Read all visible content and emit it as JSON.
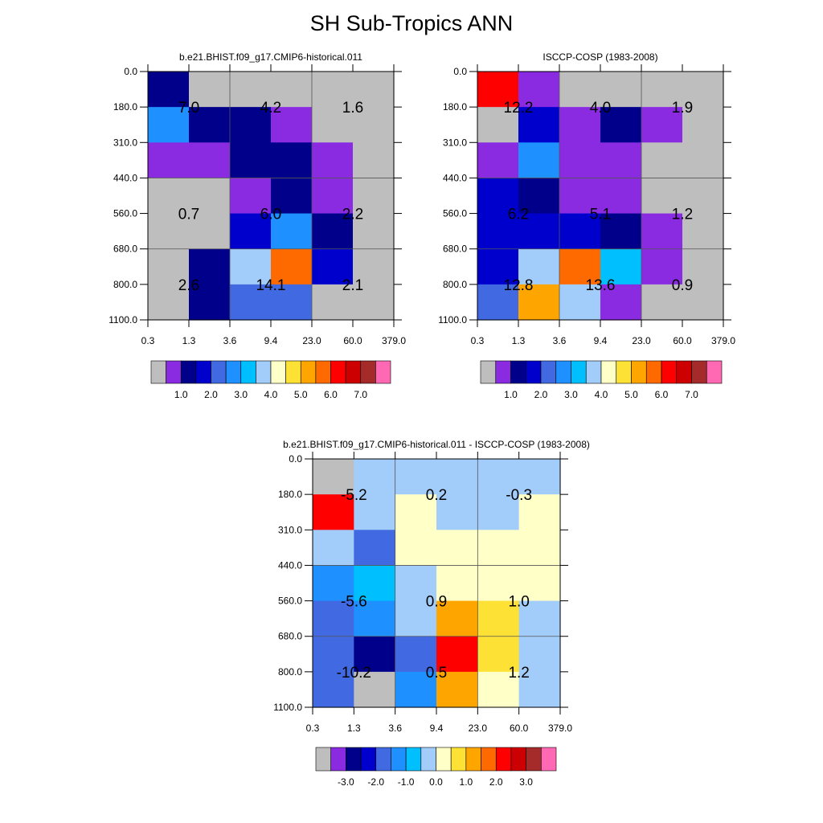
{
  "page": {
    "title": "SH Sub-Tropics ANN"
  },
  "palette": {
    "gray": "#bebebe",
    "violet": "#8a2be2",
    "navy": "#00008b",
    "blue": "#0000cd",
    "royal": "#4169e1",
    "dodger": "#1e90ff",
    "deepsky": "#00bfff",
    "lightblue": "#a2cdfa",
    "cream": "#ffffc8",
    "gold": "#fde135",
    "orange": "#ffa500",
    "darkorange": "#ff6a00",
    "red": "#ff0000",
    "darkred": "#cc0000",
    "brown": "#a52a2a",
    "pink": "#ff69b4"
  },
  "chart_data": [
    {
      "type": "heatmap",
      "title": "b.e21.BHIST.f09_g17.CMIP6-historical.011",
      "x_ticks": [
        "0.3",
        "1.3",
        "3.6",
        "9.4",
        "23.0",
        "60.0",
        "379.0"
      ],
      "y_ticks": [
        "0.0",
        "180.0",
        "310.0",
        "440.0",
        "560.0",
        "680.0",
        "800.0",
        "1100.0"
      ],
      "cell_colors": [
        [
          "navy",
          "gray",
          "gray",
          "gray",
          "gray",
          "gray"
        ],
        [
          "dodger",
          "navy",
          "navy",
          "violet",
          "gray",
          "gray"
        ],
        [
          "violet",
          "violet",
          "navy",
          "navy",
          "violet",
          "gray"
        ],
        [
          "gray",
          "gray",
          "violet",
          "navy",
          "violet",
          "gray"
        ],
        [
          "gray",
          "gray",
          "blue",
          "dodger",
          "navy",
          "gray"
        ],
        [
          "gray",
          "navy",
          "lightblue",
          "darkorange",
          "blue",
          "gray"
        ],
        [
          "gray",
          "navy",
          "royal",
          "royal",
          "gray",
          "gray"
        ]
      ],
      "annotations": [
        {
          "text": "7.0",
          "x": "1.3",
          "y": "180.0"
        },
        {
          "text": "4.2",
          "x": "9.4",
          "y": "180.0"
        },
        {
          "text": "1.6",
          "x": "60.0",
          "y": "180.0"
        },
        {
          "text": "0.7",
          "x": "1.3",
          "y": "560.0"
        },
        {
          "text": "6.0",
          "x": "9.4",
          "y": "560.0"
        },
        {
          "text": "2.2",
          "x": "60.0",
          "y": "560.0"
        },
        {
          "text": "2.6",
          "x": "1.3",
          "y": "800.0"
        },
        {
          "text": "14.1",
          "x": "9.4",
          "y": "800.0"
        },
        {
          "text": "2.1",
          "x": "60.0",
          "y": "800.0"
        }
      ],
      "colorbar": {
        "colors": [
          "gray",
          "violet",
          "navy",
          "blue",
          "royal",
          "dodger",
          "deepsky",
          "lightblue",
          "cream",
          "gold",
          "orange",
          "darkorange",
          "red",
          "darkred",
          "brown",
          "pink"
        ],
        "labels": [
          "1.0",
          "2.0",
          "3.0",
          "4.0",
          "5.0",
          "6.0",
          "7.0"
        ],
        "first_label_boundary": 2
      }
    },
    {
      "type": "heatmap",
      "title": "ISCCP-COSP (1983-2008)",
      "x_ticks": [
        "0.3",
        "1.3",
        "3.6",
        "9.4",
        "23.0",
        "60.0",
        "379.0"
      ],
      "y_ticks": [
        "0.0",
        "180.0",
        "310.0",
        "440.0",
        "560.0",
        "680.0",
        "800.0",
        "1100.0"
      ],
      "cell_colors": [
        [
          "red",
          "violet",
          "gray",
          "gray",
          "gray",
          "gray"
        ],
        [
          "gray",
          "blue",
          "violet",
          "navy",
          "violet",
          "gray"
        ],
        [
          "violet",
          "dodger",
          "violet",
          "violet",
          "gray",
          "gray"
        ],
        [
          "blue",
          "navy",
          "violet",
          "violet",
          "gray",
          "gray"
        ],
        [
          "blue",
          "blue",
          "blue",
          "navy",
          "violet",
          "gray"
        ],
        [
          "blue",
          "lightblue",
          "darkorange",
          "deepsky",
          "violet",
          "gray"
        ],
        [
          "royal",
          "orange",
          "lightblue",
          "violet",
          "gray",
          "gray"
        ]
      ],
      "annotations": [
        {
          "text": "12.2",
          "x": "1.3",
          "y": "180.0"
        },
        {
          "text": "4.0",
          "x": "9.4",
          "y": "180.0"
        },
        {
          "text": "1.9",
          "x": "60.0",
          "y": "180.0"
        },
        {
          "text": "6.2",
          "x": "1.3",
          "y": "560.0"
        },
        {
          "text": "5.1",
          "x": "9.4",
          "y": "560.0"
        },
        {
          "text": "1.2",
          "x": "60.0",
          "y": "560.0"
        },
        {
          "text": "12.8",
          "x": "1.3",
          "y": "800.0"
        },
        {
          "text": "13.6",
          "x": "9.4",
          "y": "800.0"
        },
        {
          "text": "0.9",
          "x": "60.0",
          "y": "800.0"
        }
      ],
      "colorbar": {
        "colors": [
          "gray",
          "violet",
          "navy",
          "blue",
          "royal",
          "dodger",
          "deepsky",
          "lightblue",
          "cream",
          "gold",
          "orange",
          "darkorange",
          "red",
          "darkred",
          "brown",
          "pink"
        ],
        "labels": [
          "1.0",
          "2.0",
          "3.0",
          "4.0",
          "5.0",
          "6.0",
          "7.0"
        ],
        "first_label_boundary": 2
      }
    },
    {
      "type": "heatmap",
      "title": "b.e21.BHIST.f09_g17.CMIP6-historical.011 - ISCCP-COSP (1983-2008)",
      "x_ticks": [
        "0.3",
        "1.3",
        "3.6",
        "9.4",
        "23.0",
        "60.0",
        "379.0"
      ],
      "y_ticks": [
        "0.0",
        "180.0",
        "310.0",
        "440.0",
        "560.0",
        "680.0",
        "800.0",
        "1100.0"
      ],
      "cell_colors": [
        [
          "gray",
          "lightblue",
          "lightblue",
          "lightblue",
          "lightblue",
          "lightblue"
        ],
        [
          "red",
          "lightblue",
          "cream",
          "lightblue",
          "lightblue",
          "cream"
        ],
        [
          "lightblue",
          "royal",
          "cream",
          "cream",
          "cream",
          "cream"
        ],
        [
          "dodger",
          "deepsky",
          "lightblue",
          "cream",
          "cream",
          "cream"
        ],
        [
          "royal",
          "dodger",
          "lightblue",
          "orange",
          "gold",
          "lightblue"
        ],
        [
          "royal",
          "navy",
          "royal",
          "red",
          "gold",
          "lightblue"
        ],
        [
          "royal",
          "gray",
          "dodger",
          "orange",
          "cream",
          "lightblue"
        ]
      ],
      "annotations": [
        {
          "text": "-5.2",
          "x": "1.3",
          "y": "180.0"
        },
        {
          "text": "0.2",
          "x": "9.4",
          "y": "180.0"
        },
        {
          "text": "-0.3",
          "x": "60.0",
          "y": "180.0"
        },
        {
          "text": "-5.6",
          "x": "1.3",
          "y": "560.0"
        },
        {
          "text": "0.9",
          "x": "9.4",
          "y": "560.0"
        },
        {
          "text": "1.0",
          "x": "60.0",
          "y": "560.0"
        },
        {
          "text": "-10.2",
          "x": "1.3",
          "y": "800.0"
        },
        {
          "text": "0.5",
          "x": "9.4",
          "y": "800.0"
        },
        {
          "text": "1.2",
          "x": "60.0",
          "y": "800.0"
        }
      ],
      "colorbar": {
        "colors": [
          "gray",
          "violet",
          "navy",
          "blue",
          "royal",
          "dodger",
          "deepsky",
          "lightblue",
          "cream",
          "gold",
          "orange",
          "darkorange",
          "red",
          "darkred",
          "brown",
          "pink"
        ],
        "labels": [
          "-3.0",
          "-2.0",
          "-1.0",
          "0.0",
          "1.0",
          "2.0",
          "3.0"
        ],
        "first_label_boundary": 2
      }
    }
  ]
}
